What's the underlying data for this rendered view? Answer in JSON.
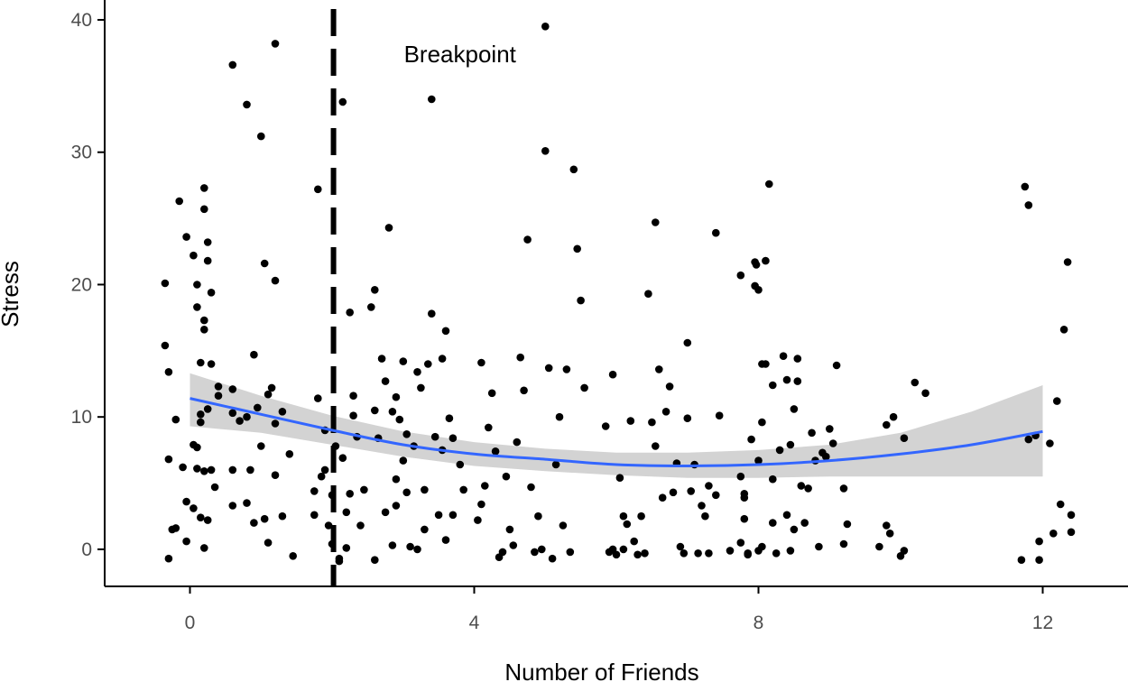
{
  "chart_data": {
    "type": "scatter",
    "title": "",
    "xlabel": "Number of Friends",
    "ylabel": "Stress",
    "xlim": [
      -1.2,
      13.2
    ],
    "ylim": [
      -2.8,
      41.5
    ],
    "x_ticks": [
      0,
      4,
      8,
      12
    ],
    "y_ticks": [
      0,
      10,
      20,
      30,
      40
    ],
    "grid": false,
    "legend": "none",
    "colors": {
      "points": "#000000",
      "smooth_line": "#3366ff",
      "confidence_band": "#d3d3d3",
      "breakpoint_line": "#000000",
      "tick_labels": "#4d4d4d"
    },
    "breakpoint": {
      "x": 2.02,
      "label": "Breakpoint",
      "label_x": 3.8,
      "label_y": 36.8
    },
    "smooth": {
      "x": [
        0,
        1,
        2,
        3,
        4,
        5,
        6,
        7,
        8,
        9,
        10,
        11,
        12
      ],
      "y": [
        11.4,
        10.2,
        9.0,
        7.9,
        7.2,
        6.8,
        6.4,
        6.3,
        6.4,
        6.7,
        7.2,
        7.9,
        8.9
      ],
      "lower": [
        9.3,
        8.8,
        7.9,
        7.0,
        6.3,
        5.9,
        5.6,
        5.4,
        5.4,
        5.5,
        5.5,
        5.5,
        5.5
      ],
      "upper": [
        13.3,
        11.6,
        10.1,
        8.9,
        8.1,
        7.6,
        7.3,
        7.3,
        7.5,
        7.9,
        8.8,
        10.4,
        12.4
      ]
    },
    "points": [
      [
        -0.35,
        20.1
      ],
      [
        -0.35,
        15.4
      ],
      [
        -0.3,
        13.4
      ],
      [
        -0.3,
        6.8
      ],
      [
        -0.3,
        -0.7
      ],
      [
        -0.25,
        1.5
      ],
      [
        -0.2,
        1.6
      ],
      [
        -0.2,
        9.8
      ],
      [
        -0.15,
        26.3
      ],
      [
        -0.1,
        6.2
      ],
      [
        -0.05,
        23.6
      ],
      [
        -0.05,
        0.6
      ],
      [
        -0.05,
        3.6
      ],
      [
        0.05,
        22.2
      ],
      [
        0.05,
        7.9
      ],
      [
        0.05,
        3.1
      ],
      [
        0.1,
        20.0
      ],
      [
        0.1,
        18.3
      ],
      [
        0.1,
        7.7
      ],
      [
        0.1,
        6.1
      ],
      [
        0.15,
        2.4
      ],
      [
        0.15,
        14.1
      ],
      [
        0.15,
        9.6
      ],
      [
        0.15,
        10.2
      ],
      [
        0.2,
        0.1
      ],
      [
        0.2,
        25.7
      ],
      [
        0.2,
        27.3
      ],
      [
        0.2,
        17.3
      ],
      [
        0.2,
        16.6
      ],
      [
        0.2,
        5.9
      ],
      [
        0.25,
        21.8
      ],
      [
        0.25,
        23.2
      ],
      [
        0.25,
        10.6
      ],
      [
        0.25,
        2.2
      ],
      [
        0.3,
        19.4
      ],
      [
        0.3,
        14.0
      ],
      [
        0.3,
        6.0
      ],
      [
        0.35,
        4.7
      ],
      [
        0.4,
        11.6
      ],
      [
        0.4,
        12.3
      ],
      [
        0.6,
        36.6
      ],
      [
        0.6,
        12.1
      ],
      [
        0.6,
        10.3
      ],
      [
        0.6,
        6.0
      ],
      [
        0.6,
        3.3
      ],
      [
        0.7,
        9.7
      ],
      [
        0.8,
        33.6
      ],
      [
        0.8,
        3.5
      ],
      [
        0.8,
        10.0
      ],
      [
        0.85,
        6.0
      ],
      [
        0.9,
        14.7
      ],
      [
        0.9,
        2.0
      ],
      [
        0.95,
        10.7
      ],
      [
        1.0,
        31.2
      ],
      [
        1.0,
        7.8
      ],
      [
        1.05,
        21.6
      ],
      [
        1.05,
        2.3
      ],
      [
        1.1,
        11.7
      ],
      [
        1.1,
        0.5
      ],
      [
        1.15,
        12.2
      ],
      [
        1.2,
        38.2
      ],
      [
        1.2,
        20.3
      ],
      [
        1.2,
        9.5
      ],
      [
        1.2,
        5.6
      ],
      [
        1.3,
        2.5
      ],
      [
        1.3,
        10.4
      ],
      [
        1.4,
        7.2
      ],
      [
        1.45,
        -0.5
      ],
      [
        1.75,
        2.6
      ],
      [
        1.75,
        4.4
      ],
      [
        1.8,
        27.2
      ],
      [
        1.8,
        11.4
      ],
      [
        1.85,
        5.5
      ],
      [
        1.9,
        6.0
      ],
      [
        1.9,
        9.0
      ],
      [
        1.95,
        1.8
      ],
      [
        2.0,
        0.4
      ],
      [
        2.0,
        4.1
      ],
      [
        2.05,
        7.8
      ],
      [
        2.1,
        -0.7
      ],
      [
        2.1,
        -0.9
      ],
      [
        2.15,
        33.8
      ],
      [
        2.15,
        6.9
      ],
      [
        2.2,
        0.1
      ],
      [
        2.2,
        2.8
      ],
      [
        2.25,
        17.9
      ],
      [
        2.25,
        4.2
      ],
      [
        2.3,
        10.1
      ],
      [
        2.3,
        11.6
      ],
      [
        2.35,
        8.5
      ],
      [
        2.4,
        1.8
      ],
      [
        2.45,
        4.5
      ],
      [
        2.55,
        18.3
      ],
      [
        2.6,
        10.5
      ],
      [
        2.6,
        19.6
      ],
      [
        2.6,
        -0.8
      ],
      [
        2.65,
        8.4
      ],
      [
        2.7,
        14.4
      ],
      [
        2.75,
        12.7
      ],
      [
        2.75,
        2.8
      ],
      [
        2.8,
        24.3
      ],
      [
        2.85,
        10.4
      ],
      [
        2.85,
        0.3
      ],
      [
        2.9,
        3.3
      ],
      [
        2.9,
        11.5
      ],
      [
        2.9,
        5.3
      ],
      [
        2.95,
        9.8
      ],
      [
        3.0,
        14.2
      ],
      [
        3.0,
        6.7
      ],
      [
        3.05,
        4.3
      ],
      [
        3.05,
        8.7
      ],
      [
        3.1,
        0.2
      ],
      [
        3.15,
        7.8
      ],
      [
        3.2,
        0.0
      ],
      [
        3.2,
        13.4
      ],
      [
        3.25,
        12.2
      ],
      [
        3.3,
        1.5
      ],
      [
        3.3,
        4.5
      ],
      [
        3.35,
        14.0
      ],
      [
        3.4,
        17.8
      ],
      [
        3.4,
        34.0
      ],
      [
        3.45,
        8.5
      ],
      [
        3.5,
        2.6
      ],
      [
        3.55,
        7.5
      ],
      [
        3.55,
        14.4
      ],
      [
        3.6,
        16.5
      ],
      [
        3.6,
        0.7
      ],
      [
        3.65,
        9.9
      ],
      [
        3.7,
        2.6
      ],
      [
        3.7,
        8.4
      ],
      [
        3.8,
        6.4
      ],
      [
        3.85,
        4.5
      ],
      [
        4.05,
        2.2
      ],
      [
        4.1,
        14.1
      ],
      [
        4.1,
        3.4
      ],
      [
        4.15,
        4.8
      ],
      [
        4.2,
        9.2
      ],
      [
        4.25,
        11.8
      ],
      [
        4.3,
        7.4
      ],
      [
        4.35,
        -0.6
      ],
      [
        4.4,
        -0.2
      ],
      [
        4.45,
        5.5
      ],
      [
        4.5,
        1.5
      ],
      [
        4.55,
        0.3
      ],
      [
        4.6,
        8.1
      ],
      [
        4.65,
        14.5
      ],
      [
        4.7,
        12.0
      ],
      [
        4.75,
        23.4
      ],
      [
        4.8,
        4.7
      ],
      [
        4.85,
        -0.2
      ],
      [
        4.9,
        2.5
      ],
      [
        4.95,
        0.0
      ],
      [
        5.0,
        39.5
      ],
      [
        5.0,
        30.1
      ],
      [
        5.05,
        13.7
      ],
      [
        5.1,
        -0.7
      ],
      [
        5.15,
        6.4
      ],
      [
        5.2,
        10.0
      ],
      [
        5.25,
        1.8
      ],
      [
        5.3,
        13.6
      ],
      [
        5.35,
        -0.2
      ],
      [
        5.4,
        28.7
      ],
      [
        5.45,
        22.7
      ],
      [
        5.5,
        18.8
      ],
      [
        5.55,
        12.2
      ],
      [
        5.85,
        9.3
      ],
      [
        5.9,
        -0.2
      ],
      [
        5.95,
        0.0
      ],
      [
        5.95,
        13.2
      ],
      [
        6.0,
        -0.4
      ],
      [
        6.05,
        5.4
      ],
      [
        6.1,
        2.5
      ],
      [
        6.1,
        0.0
      ],
      [
        6.15,
        1.9
      ],
      [
        6.2,
        9.7
      ],
      [
        6.25,
        0.6
      ],
      [
        6.3,
        -0.4
      ],
      [
        6.35,
        2.5
      ],
      [
        6.4,
        -0.3
      ],
      [
        6.45,
        19.3
      ],
      [
        6.5,
        9.6
      ],
      [
        6.55,
        24.7
      ],
      [
        6.55,
        7.8
      ],
      [
        6.6,
        13.6
      ],
      [
        6.65,
        3.9
      ],
      [
        6.7,
        10.4
      ],
      [
        6.75,
        12.3
      ],
      [
        6.8,
        4.3
      ],
      [
        6.85,
        6.5
      ],
      [
        6.9,
        0.2
      ],
      [
        6.95,
        -0.3
      ],
      [
        7.0,
        15.6
      ],
      [
        7.05,
        4.4
      ],
      [
        7.1,
        6.4
      ],
      [
        7.15,
        -0.3
      ],
      [
        7.2,
        3.3
      ],
      [
        7.25,
        2.5
      ],
      [
        7.3,
        -0.3
      ],
      [
        7.4,
        23.9
      ],
      [
        7.45,
        10.1
      ],
      [
        7.75,
        20.7
      ],
      [
        7.8,
        4.2
      ],
      [
        7.8,
        2.3
      ],
      [
        7.85,
        -0.3
      ],
      [
        7.95,
        19.9
      ],
      [
        8.0,
        19.6
      ],
      [
        8.05,
        0.2
      ],
      [
        8.05,
        9.6
      ],
      [
        8.1,
        21.8
      ],
      [
        8.15,
        27.6
      ],
      [
        8.2,
        5.3
      ],
      [
        8.2,
        12.4
      ],
      [
        8.25,
        -0.3
      ],
      [
        8.35,
        14.6
      ],
      [
        8.45,
        7.9
      ],
      [
        8.5,
        1.5
      ],
      [
        8.55,
        14.4
      ],
      [
        8.6,
        4.8
      ],
      [
        8.65,
        2.0
      ],
      [
        8.7,
        4.6
      ],
      [
        8.75,
        8.8
      ],
      [
        8.8,
        6.7
      ],
      [
        8.85,
        0.2
      ],
      [
        8.9,
        7.3
      ],
      [
        8.95,
        7.0
      ],
      [
        9.0,
        9.1
      ],
      [
        9.05,
        8.0
      ],
      [
        9.1,
        13.9
      ],
      [
        9.2,
        4.6
      ],
      [
        9.25,
        1.9
      ],
      [
        7.0,
        9.9
      ],
      [
        7.3,
        4.8
      ],
      [
        7.4,
        4.1
      ],
      [
        7.6,
        -0.1
      ],
      [
        7.75,
        5.5
      ],
      [
        7.75,
        0.5
      ],
      [
        7.8,
        3.9
      ],
      [
        7.85,
        -0.4
      ],
      [
        7.9,
        8.3
      ],
      [
        7.95,
        21.7
      ],
      [
        7.97,
        21.5
      ],
      [
        8.0,
        6.7
      ],
      [
        8.0,
        -0.1
      ],
      [
        8.05,
        14.0
      ],
      [
        8.1,
        14.0
      ],
      [
        8.2,
        2.0
      ],
      [
        8.3,
        7.5
      ],
      [
        8.4,
        12.8
      ],
      [
        8.4,
        2.6
      ],
      [
        8.45,
        -0.1
      ],
      [
        8.5,
        10.6
      ],
      [
        8.55,
        12.7
      ],
      [
        9.2,
        0.4
      ],
      [
        9.7,
        0.2
      ],
      [
        9.8,
        1.8
      ],
      [
        9.8,
        9.4
      ],
      [
        9.85,
        1.2
      ],
      [
        9.9,
        10.0
      ],
      [
        10.0,
        -0.5
      ],
      [
        10.05,
        -0.1
      ],
      [
        10.05,
        8.4
      ],
      [
        10.2,
        12.6
      ],
      [
        10.35,
        11.8
      ],
      [
        11.7,
        -0.8
      ],
      [
        11.75,
        27.4
      ],
      [
        11.8,
        26.0
      ],
      [
        11.8,
        8.3
      ],
      [
        11.9,
        8.6
      ],
      [
        11.95,
        0.6
      ],
      [
        11.95,
        -0.8
      ],
      [
        12.1,
        8.0
      ],
      [
        12.15,
        1.2
      ],
      [
        12.2,
        11.2
      ],
      [
        12.25,
        3.4
      ],
      [
        12.3,
        16.6
      ],
      [
        12.35,
        21.7
      ],
      [
        12.4,
        1.3
      ],
      [
        12.4,
        2.6
      ]
    ]
  }
}
